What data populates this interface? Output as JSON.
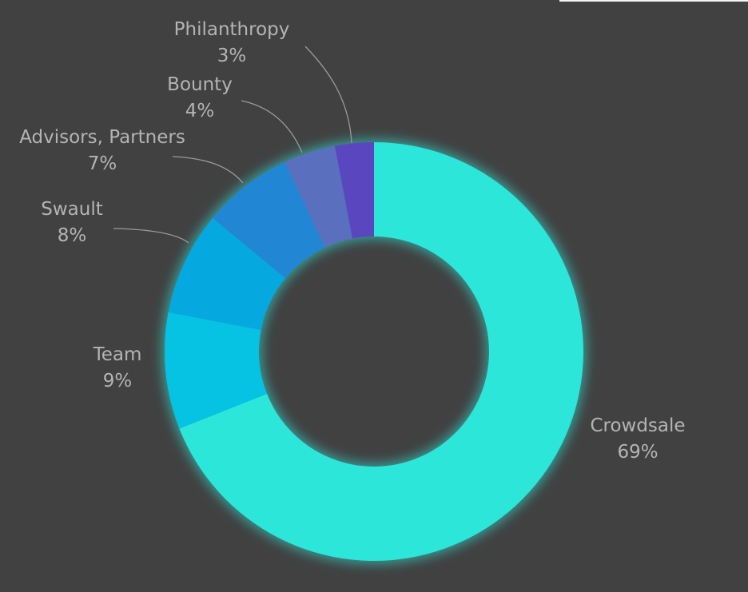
{
  "chart_data": {
    "type": "pie",
    "donut": true,
    "categories": [
      "Crowdsale",
      "Team",
      "Swault",
      "Advisors, Partners",
      "Bounty",
      "Philanthropy"
    ],
    "values": [
      69,
      9,
      8,
      7,
      4,
      3
    ],
    "value_labels": [
      "69%",
      "9%",
      "8%",
      "7%",
      "4%",
      "3%"
    ],
    "colors": [
      "#2de6da",
      "#06c3e3",
      "#06a8e0",
      "#2187d4",
      "#5a6fbd",
      "#5a47c0"
    ],
    "start_angle": "12 o'clock",
    "direction": "clockwise",
    "legend": "none",
    "labels": "outside with leader lines"
  },
  "theme": {
    "background": "#414141",
    "label_color": "#b4b4b4",
    "leader_color": "#9a9a9a",
    "glow_color": "#2de6da"
  }
}
